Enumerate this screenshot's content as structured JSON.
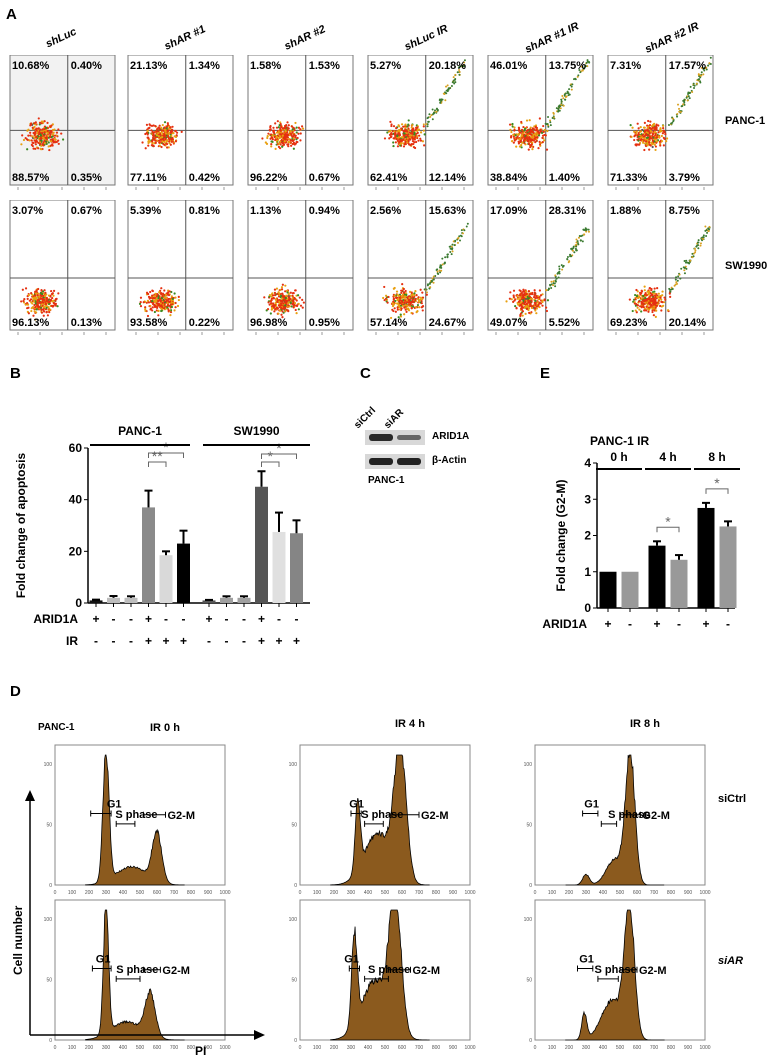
{
  "panel_a": {
    "label": "A",
    "columns": [
      "shLuc",
      "shAR #1",
      "shAR #2",
      "shLuc IR",
      "shAR #1 IR",
      "shAR #2 IR"
    ],
    "rows": [
      {
        "name": "PANC-1",
        "quadrants": [
          [
            "10.68%",
            "0.40%",
            "88.57%",
            "0.35%"
          ],
          [
            "21.13%",
            "1.34%",
            "77.11%",
            "0.42%"
          ],
          [
            "1.58%",
            "1.53%",
            "96.22%",
            "0.67%"
          ],
          [
            "5.27%",
            "20.18%",
            "62.41%",
            "12.14%"
          ],
          [
            "46.01%",
            "13.75%",
            "38.84%",
            "1.40%"
          ],
          [
            "7.31%",
            "17.57%",
            "71.33%",
            "3.79%"
          ]
        ]
      },
      {
        "name": "SW1990",
        "quadrants": [
          [
            "3.07%",
            "0.67%",
            "96.13%",
            "0.13%"
          ],
          [
            "5.39%",
            "0.81%",
            "93.58%",
            "0.22%"
          ],
          [
            "1.13%",
            "0.94%",
            "96.98%",
            "0.95%"
          ],
          [
            "2.56%",
            "15.63%",
            "57.14%",
            "24.67%"
          ],
          [
            "17.09%",
            "28.31%",
            "49.07%",
            "5.52%"
          ],
          [
            "1.88%",
            "8.75%",
            "69.23%",
            "20.14%"
          ]
        ]
      }
    ]
  },
  "panel_c": {
    "label": "C",
    "lanes": [
      "siCtrl",
      "siAR"
    ],
    "bands": [
      "ARID1A",
      "β-Actin"
    ],
    "cell_line": "PANC-1"
  },
  "panel_d": {
    "label": "D",
    "cell_line": "PANC-1",
    "timepoints": [
      "IR 0 h",
      "IR 4 h",
      "IR 8 h"
    ],
    "rows": [
      "siCtrl",
      "siAR"
    ],
    "gates": [
      "G1",
      "S phase",
      "G2-M"
    ],
    "ylabel": "Cell number",
    "xlabel": "PI",
    "x_ticks": [
      "0",
      "100",
      "200",
      "300",
      "400",
      "500",
      "600",
      "700",
      "800",
      "900",
      "1000"
    ],
    "fill_color": "#8b5a1e"
  },
  "chart_data": [
    {
      "panel": "B",
      "type": "bar",
      "ylabel": "Fold change of apoptosis",
      "ylim": [
        0,
        60
      ],
      "yticks": [
        "0",
        "20",
        "40",
        "60"
      ],
      "groups": [
        "PANC-1",
        "SW1990"
      ],
      "row_labels": [
        "ARID1A",
        "IR"
      ],
      "ARID1A": [
        "+",
        "-",
        "-",
        "+",
        "-",
        "-",
        "+",
        "-",
        "-",
        "+",
        "-",
        "-"
      ],
      "IR": [
        "-",
        "-",
        "-",
        "+",
        "+",
        "+",
        "-",
        "-",
        "-",
        "+",
        "+",
        "+"
      ],
      "values": [
        1,
        2,
        2,
        37,
        18.5,
        23,
        1,
        2,
        2,
        45,
        27.5,
        27
      ],
      "errors": [
        0.3,
        0.7,
        0.6,
        6.5,
        1.5,
        5,
        0.2,
        0.6,
        0.6,
        6,
        7.5,
        5
      ],
      "colors": [
        "#111111",
        "#bdbdbd",
        "#bdbdbd",
        "#8a8a8a",
        "#d9d9d9",
        "#000000",
        "#555555",
        "#a0a0a0",
        "#a0a0a0",
        "#555555",
        "#e0e0e0",
        "#858585"
      ],
      "significance": [
        {
          "pair": [
            4,
            5
          ],
          "mark": "**"
        },
        {
          "pair": [
            4,
            6
          ],
          "mark": "*"
        },
        {
          "pair": [
            10,
            11
          ],
          "mark": "*"
        },
        {
          "pair": [
            10,
            12
          ],
          "mark": "*"
        }
      ]
    },
    {
      "panel": "E",
      "type": "bar",
      "title": "PANC-1   IR",
      "ylabel": "Fold change (G2-M)",
      "ylim": [
        0,
        4
      ],
      "yticks": [
        "0",
        "1",
        "2",
        "3",
        "4"
      ],
      "groups": [
        "0 h",
        "4 h",
        "8 h"
      ],
      "row_labels": [
        "ARID1A"
      ],
      "ARID1A": [
        "+",
        "-",
        "+",
        "-",
        "+",
        "-"
      ],
      "values": [
        1,
        1,
        1.72,
        1.33,
        2.76,
        2.25
      ],
      "errors": [
        0,
        0,
        0.12,
        0.13,
        0.14,
        0.14
      ],
      "colors": [
        "#000000",
        "#999999",
        "#000000",
        "#999999",
        "#000000",
        "#999999"
      ],
      "significance": [
        {
          "pair": [
            3,
            4
          ],
          "mark": "*"
        },
        {
          "pair": [
            5,
            6
          ],
          "mark": "*"
        }
      ]
    }
  ]
}
